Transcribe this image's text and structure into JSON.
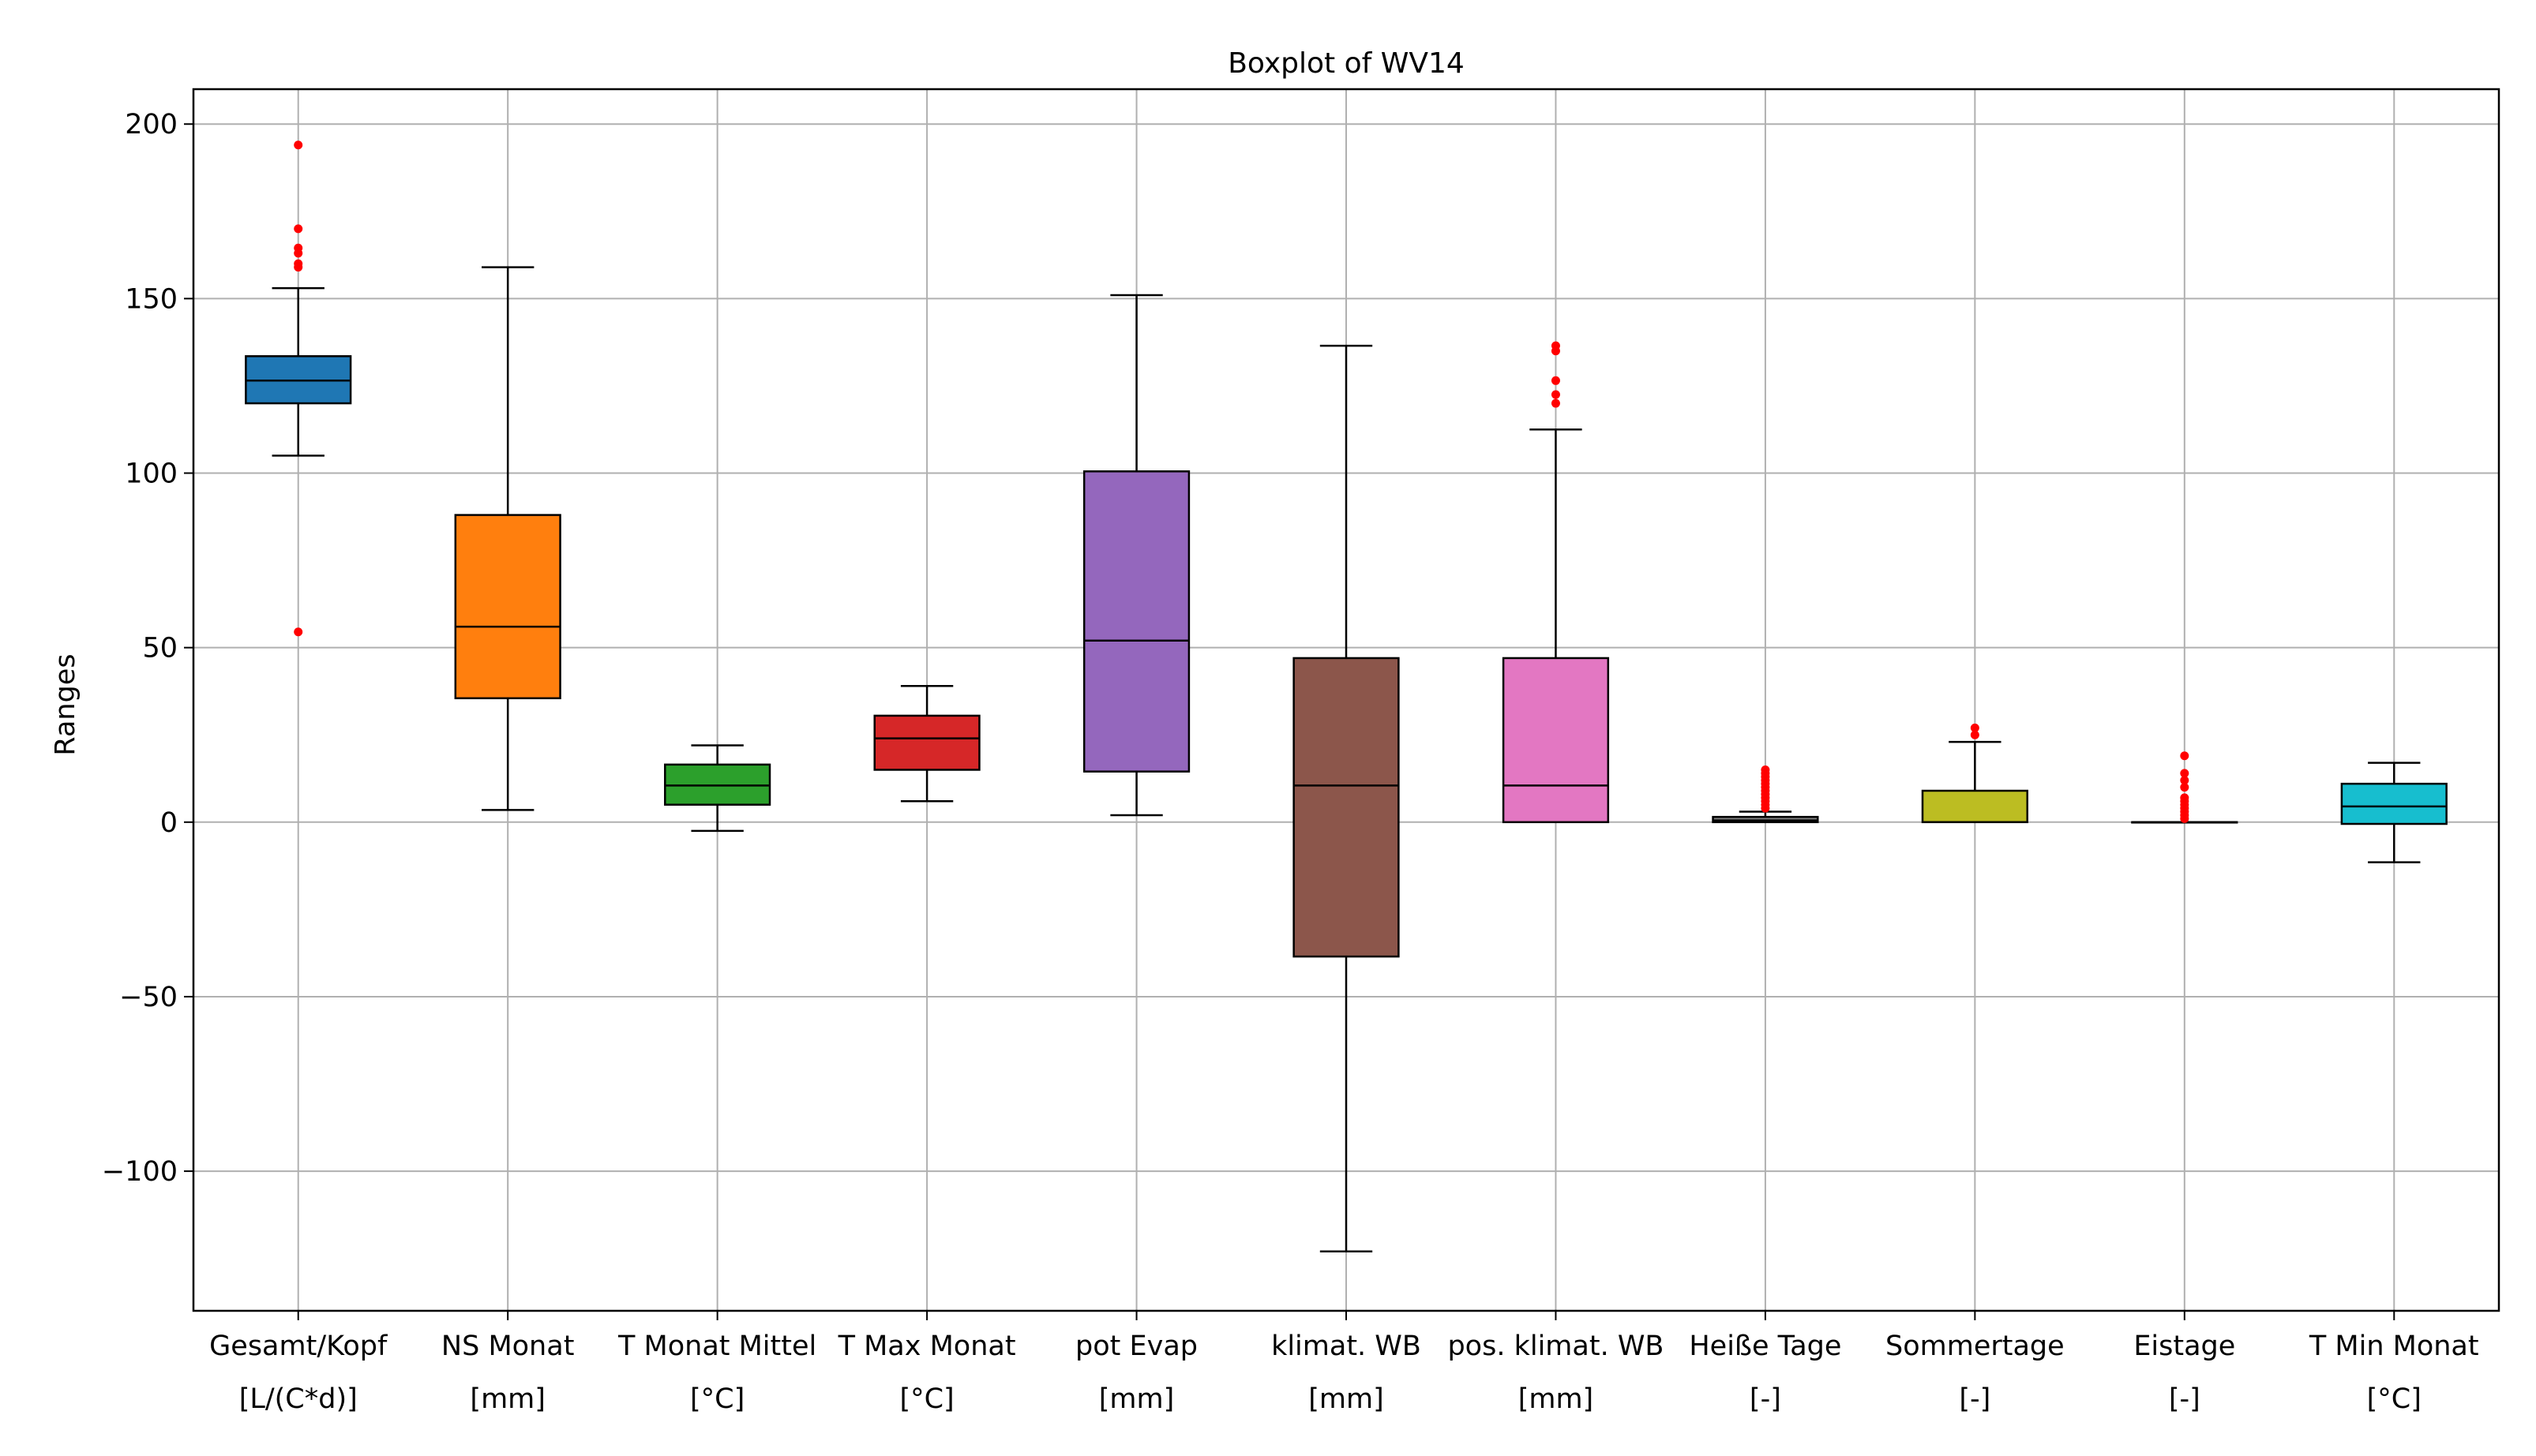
{
  "chart_data": {
    "type": "boxplot",
    "title": "Boxplot of WV14",
    "xlabel": "",
    "ylabel": "Ranges",
    "ylim": [
      -140,
      210
    ],
    "yticks": [
      -100,
      -50,
      0,
      50,
      100,
      150,
      200
    ],
    "ytick_labels": [
      "−100",
      "−50",
      "0",
      "50",
      "100",
      "150",
      "200"
    ],
    "grid": true,
    "outlier_color": "#ff0000",
    "categories": [
      {
        "label": "Gesamt/Kopf",
        "unit": "[L/(C*d)]",
        "color": "#1f77b4",
        "whisker_low": 105,
        "q1": 120,
        "median": 126.5,
        "q3": 133.5,
        "whisker_high": 153,
        "outliers": [
          54.5,
          159,
          160,
          163,
          164.5,
          170,
          194
        ]
      },
      {
        "label": "NS Monat",
        "unit": "[mm]",
        "color": "#ff7f0e",
        "whisker_low": 3.5,
        "q1": 35.5,
        "median": 56,
        "q3": 88,
        "whisker_high": 159,
        "outliers": []
      },
      {
        "label": "T Monat Mittel",
        "unit": "[°C]",
        "color": "#2ca02c",
        "whisker_low": -2.5,
        "q1": 5,
        "median": 10.5,
        "q3": 16.5,
        "whisker_high": 22,
        "outliers": []
      },
      {
        "label": "T Max Monat",
        "unit": "[°C]",
        "color": "#d62728",
        "whisker_low": 6,
        "q1": 15,
        "median": 24,
        "q3": 30.5,
        "whisker_high": 39,
        "outliers": []
      },
      {
        "label": "pot Evap",
        "unit": "[mm]",
        "color": "#9467bd",
        "whisker_low": 2,
        "q1": 14.5,
        "median": 52,
        "q3": 100.5,
        "whisker_high": 151,
        "outliers": []
      },
      {
        "label": "klimat. WB",
        "unit": "[mm]",
        "color": "#8c564b",
        "whisker_low": -123,
        "q1": -38.5,
        "median": 10.5,
        "q3": 47,
        "whisker_high": 136.5,
        "outliers": []
      },
      {
        "label": "pos. klimat. WB",
        "unit": "[mm]",
        "color": "#e377c2",
        "whisker_low": 0,
        "q1": 0,
        "median": 10.5,
        "q3": 47,
        "whisker_high": 112.5,
        "outliers": [
          120,
          122.5,
          126.5,
          135,
          136.5
        ]
      },
      {
        "label": "Heiße Tage",
        "unit": "[-]",
        "color": "#7f7f7f",
        "whisker_low": 0,
        "q1": 0,
        "median": 0.5,
        "q3": 1.5,
        "whisker_high": 3,
        "outliers": [
          4,
          5,
          6,
          7,
          8,
          9,
          10,
          11,
          12,
          13,
          14,
          15
        ]
      },
      {
        "label": "Sommertage",
        "unit": "[-]",
        "color": "#bcbd22",
        "whisker_low": 0,
        "q1": 0,
        "median": 0,
        "q3": 9,
        "whisker_high": 23,
        "outliers": [
          25,
          27
        ]
      },
      {
        "label": "Eistage",
        "unit": "[-]",
        "color": "#7f7f7f",
        "whisker_low": 0,
        "q1": 0,
        "median": 0,
        "q3": 0,
        "whisker_high": 0,
        "outliers": [
          1,
          2,
          3,
          4,
          5,
          6,
          7,
          10,
          12,
          14,
          19
        ]
      },
      {
        "label": "T Min Monat",
        "unit": "[°C]",
        "color": "#17becf",
        "whisker_low": -11.5,
        "q1": -0.5,
        "median": 4.5,
        "q3": 11,
        "whisker_high": 17,
        "outliers": []
      }
    ]
  }
}
